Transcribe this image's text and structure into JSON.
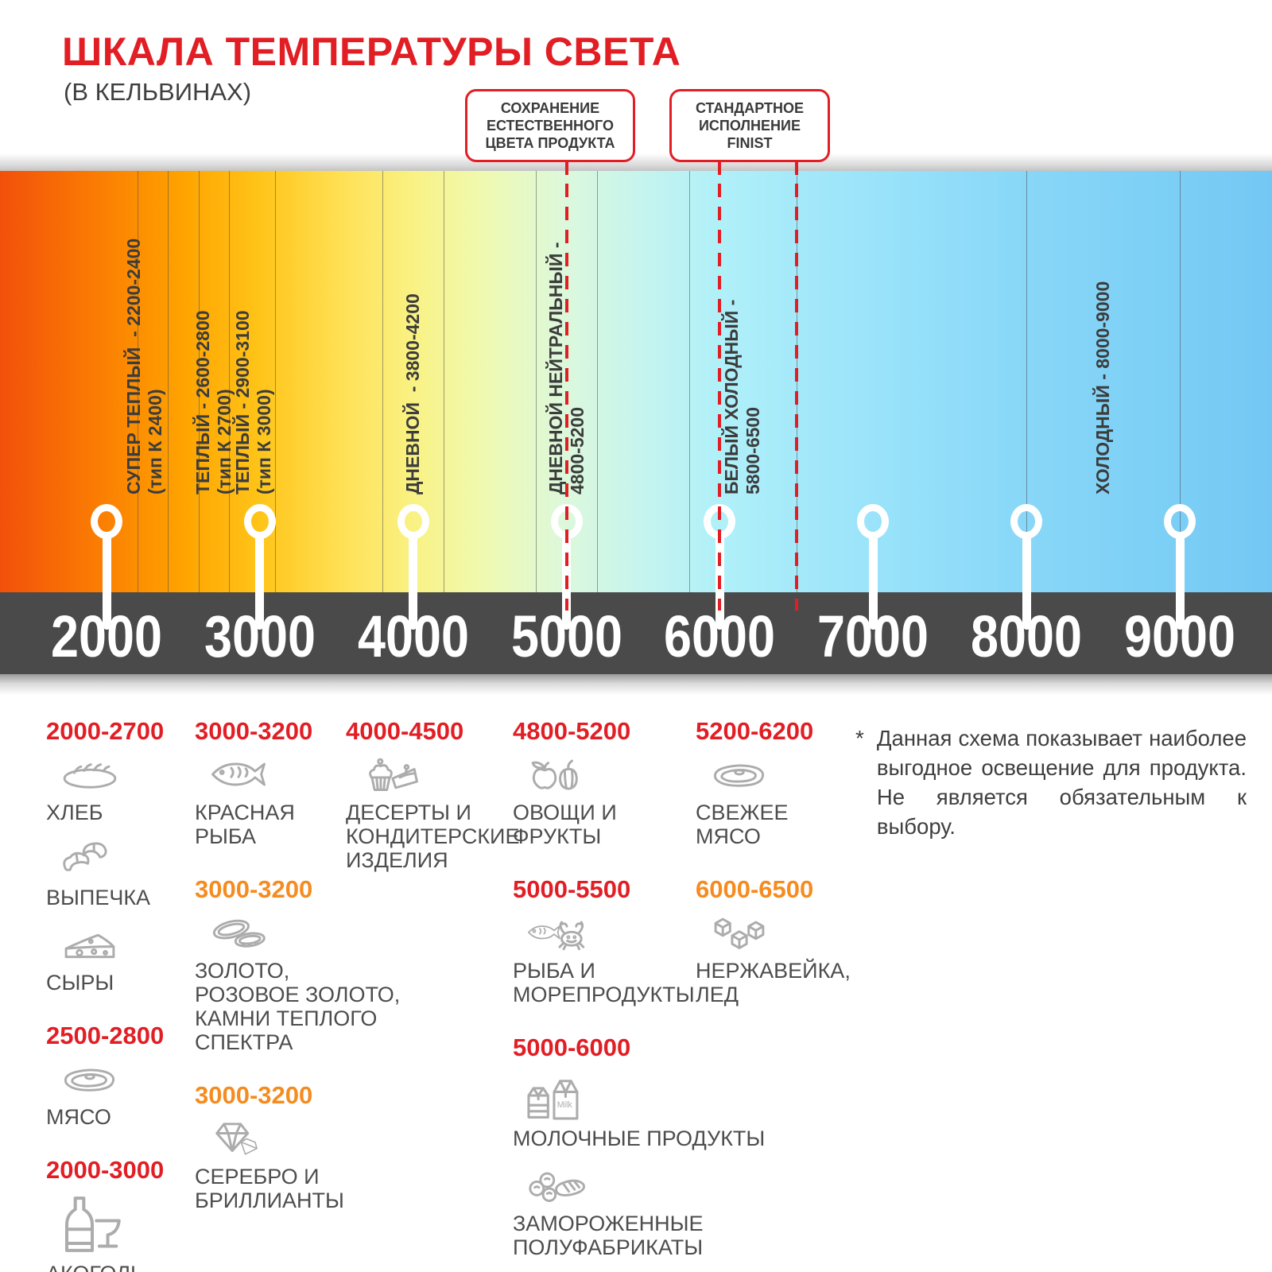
{
  "title": "ШКАЛА ТЕМПЕРАТУРЫ СВЕТА",
  "subtitle": "(В КЕЛЬВИНАХ)",
  "callouts": [
    {
      "label": "СОХРАНЕНИЕ\nЕСТЕСТВЕННОГО\nЦВЕТА ПРОДУКТА",
      "points_to_kelvin": [
        5000
      ]
    },
    {
      "label": "СТАНДАРТНОЕ\nИСПОЛНЕНИЕ\nFINIST",
      "points_to_kelvin": [
        6000,
        6500
      ]
    }
  ],
  "scale": {
    "unit": "K",
    "min_kelvin": 2000,
    "max_kelvin": 9000,
    "ticks": [
      "2000",
      "3000",
      "4000",
      "5000",
      "6000",
      "7000",
      "8000",
      "9000"
    ],
    "zone_boundaries_kelvin": [
      2200,
      2400,
      2600,
      2800,
      3100,
      3800,
      4200,
      4800,
      5200,
      5800,
      6500,
      8000,
      9000
    ],
    "zones": [
      {
        "label": "СУПЕР ТЕПЛЫЙ  - 2200-2400",
        "type_note": "(тип К 2400)",
        "label_at_kelvin": 2250
      },
      {
        "label": "ТЕПЛЫЙ - 2600-2800",
        "type_note": "(тип К 2700)",
        "label_at_kelvin": 2700
      },
      {
        "label": "ТЕПЛЫЙ - 2900-3100",
        "type_note": "(тип К 3000)",
        "label_at_kelvin": 2960
      },
      {
        "label": "ДНЕВНОЙ  - 3800-4200",
        "type_note": "",
        "label_at_kelvin": 4000
      },
      {
        "label": "ДНЕВНОЙ НЕЙТРАЛЬНЫЙ -",
        "type_note": "4800-5200",
        "label_at_kelvin": 5000
      },
      {
        "label": "БЕЛЫЙ ХОЛОДНЫЙ -",
        "type_note": "5800-6500",
        "label_at_kelvin": 6150
      },
      {
        "label": "ХОЛОДНЫЙ - 8000-9000",
        "type_note": "",
        "label_at_kelvin": 8500
      }
    ],
    "gradient_stops": [
      {
        "pos": 0,
        "color": "#F2500A"
      },
      {
        "pos": 8.4,
        "color": "#FB8102"
      },
      {
        "pos": 14.4,
        "color": "#FFA300"
      },
      {
        "pos": 20.4,
        "color": "#FFC418"
      },
      {
        "pos": 26.5,
        "color": "#FFDF52"
      },
      {
        "pos": 32.5,
        "color": "#F9F284"
      },
      {
        "pos": 38.5,
        "color": "#EEFAB4"
      },
      {
        "pos": 44.5,
        "color": "#DCF8DC"
      },
      {
        "pos": 50.6,
        "color": "#C5F4EF"
      },
      {
        "pos": 56.6,
        "color": "#B0F0F9"
      },
      {
        "pos": 68.6,
        "color": "#9AE3FA"
      },
      {
        "pos": 80.7,
        "color": "#88D7F8"
      },
      {
        "pos": 92.7,
        "color": "#7BCEF5"
      },
      {
        "pos": 100,
        "color": "#73C8F3"
      }
    ]
  },
  "legend": {
    "columns": [
      {
        "groups": [
          {
            "range": "2000-2700",
            "color": "red",
            "items": [
              {
                "icon": "bread-icon",
                "label": "ХЛЕБ"
              },
              {
                "icon": "croissant-icon",
                "label": "ВЫПЕЧКА"
              },
              {
                "icon": "cheese-icon",
                "label": "СЫРЫ"
              }
            ]
          },
          {
            "range": "2500-2800",
            "color": "red",
            "items": [
              {
                "icon": "meat-icon",
                "label": "МЯСО"
              }
            ]
          },
          {
            "range": "2000-3000",
            "color": "red",
            "items": [
              {
                "icon": "alcohol-icon",
                "label": "АКОГОЛЬ"
              }
            ]
          }
        ]
      },
      {
        "groups": [
          {
            "range": "3000-3200",
            "color": "red",
            "items": [
              {
                "icon": "fish-icon",
                "label": "КРАСНАЯ\nРЫБА"
              }
            ]
          },
          {
            "range": "3000-3200",
            "color": "orange",
            "items": [
              {
                "icon": "rings-icon",
                "label": "ЗОЛОТО,\nРОЗОВОЕ ЗОЛОТО,\nКАМНИ ТЕПЛОГО\nСПЕКТРА"
              }
            ]
          },
          {
            "range": "3000-3200",
            "color": "orange",
            "items": [
              {
                "icon": "diamond-icon",
                "label": "СЕРЕБРО И\nБРИЛЛИАНТЫ"
              }
            ]
          }
        ]
      },
      {
        "groups": [
          {
            "range": "4000-4500",
            "color": "red",
            "items": [
              {
                "icon": "dessert-icon",
                "label": "ДЕСЕРТЫ И\nКОНДИТЕРСКИЕ\nИЗДЕЛИЯ"
              }
            ]
          }
        ]
      },
      {
        "groups": [
          {
            "range": "4800-5200",
            "color": "red",
            "items": [
              {
                "icon": "vegetables-icon",
                "label": "ОВОЩИ И\nФРУКТЫ"
              }
            ]
          },
          {
            "range": "5000-5500",
            "color": "red",
            "items": [
              {
                "icon": "seafood-icon",
                "label": "РЫБА И\nМОРЕПРОДУКТЫ"
              }
            ]
          },
          {
            "range": "5000-6000",
            "color": "red",
            "items": [
              {
                "icon": "milk-icon",
                "label": "МОЛОЧНЫЕ ПРОДУКТЫ"
              },
              {
                "icon": "frozen-icon",
                "label": "ЗАМОРОЖЕННЫЕ\nПОЛУФАБРИКАТЫ"
              }
            ]
          }
        ]
      },
      {
        "groups": [
          {
            "range": "5200-6200",
            "color": "red",
            "items": [
              {
                "icon": "fresh-meat-icon",
                "label": "СВЕЖЕЕ\nМЯСО"
              }
            ]
          },
          {
            "range": "6000-6500",
            "color": "orange",
            "items": [
              {
                "icon": "ice-icon",
                "label": "НЕРЖАВЕЙКА,\nЛЕД"
              }
            ]
          }
        ]
      }
    ]
  },
  "note": {
    "marker": "*",
    "text": "Данная схема показывает наиболее выгодное освещение для продукта. Не является обязательным к выбору."
  },
  "colors": {
    "red": "#E21E25",
    "orange": "#F68B1F",
    "axis_bar": "#4A4A4B",
    "zone_label": "#3C3C3C",
    "icon_gray": "#ACACAC"
  }
}
